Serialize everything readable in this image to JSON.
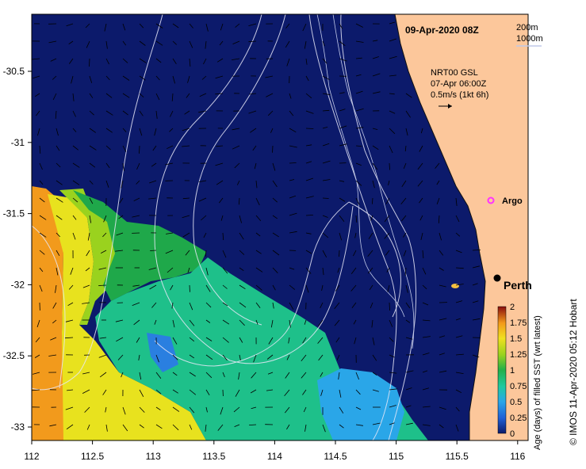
{
  "map": {
    "title": "09-Apr-2020 08Z",
    "bathymetry_legend": [
      "200m",
      "1000m"
    ],
    "current_info": {
      "line1": "NRT00 GSL",
      "line2": "07-Apr 06:00Z",
      "line3": "0.5m/s (1kt 6h)"
    },
    "labels": {
      "argo": "Argo",
      "perth": "Perth"
    },
    "credit": "© IMOS 11-Apr-2020 05:12 Hobart",
    "x_ticks": [
      "112",
      "112.5",
      "113",
      "113.5",
      "114",
      "114.5",
      "115",
      "115.5",
      "116"
    ],
    "y_ticks": [
      "-30.5",
      "-31",
      "-31.5",
      "-32",
      "-32.5",
      "-33"
    ],
    "colors": {
      "ocean_deep": "#0c1a6b",
      "land": "#fcc79b",
      "argo_marker": "#ff33ff"
    }
  },
  "colorbar": {
    "title": "Age (days) of filled SST (wrt latest)",
    "ticks": [
      "0",
      "0.25",
      "0.5",
      "0.75",
      "1",
      "1.25",
      "1.5",
      "1.75",
      "2"
    ],
    "range": [
      0,
      2
    ]
  }
}
